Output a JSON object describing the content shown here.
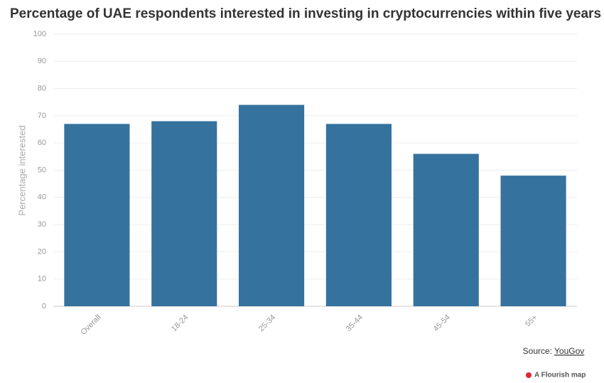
{
  "chart_data": {
    "type": "bar",
    "title": "Percentage of UAE respondents interested in investing in cryptocurrencies within five years",
    "y_label": "Percentage interested",
    "categories": [
      "Overall",
      "18-24",
      "25-34",
      "35-44",
      "45-54",
      "55+"
    ],
    "values": [
      67,
      68,
      74,
      67,
      56,
      48
    ],
    "color": "#35729e",
    "ylim": [
      0,
      100
    ],
    "yticks": [
      0,
      10,
      20,
      30,
      40,
      50,
      60,
      70,
      80,
      90,
      100
    ],
    "grid": true,
    "source_label": "Source:",
    "source": "YouGov",
    "credit": "A Flourish map"
  }
}
